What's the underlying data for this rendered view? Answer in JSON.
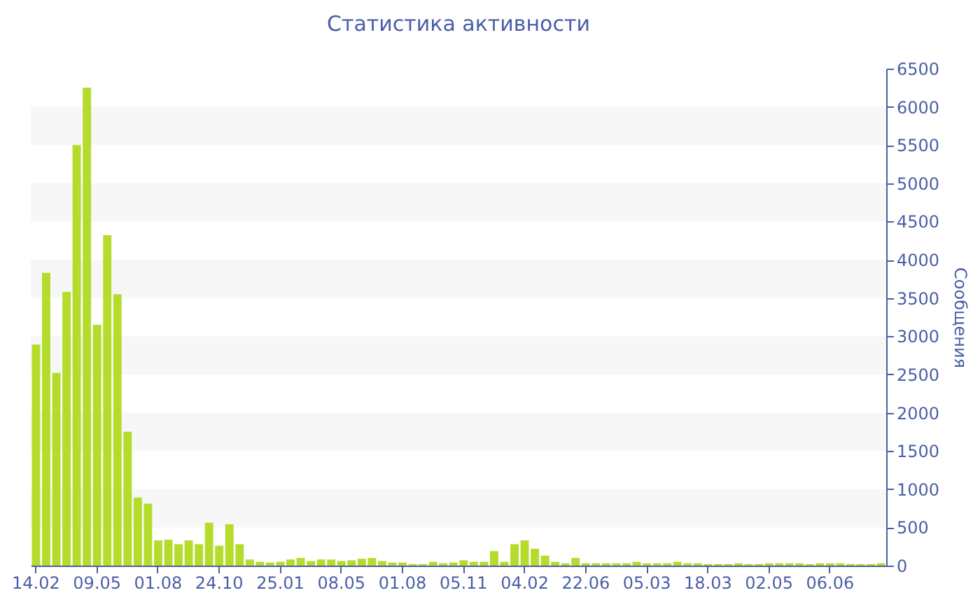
{
  "chart_data": {
    "type": "bar",
    "title": "Статистика активности",
    "ylabel": "Сообщения",
    "categories": [
      "14.02",
      null,
      null,
      null,
      null,
      null,
      "09.05",
      null,
      null,
      null,
      null,
      null,
      "01.08",
      null,
      null,
      null,
      null,
      null,
      "24.10",
      null,
      null,
      null,
      null,
      null,
      "25.01",
      null,
      null,
      null,
      null,
      null,
      "08.05",
      null,
      null,
      null,
      null,
      null,
      "01.08",
      null,
      null,
      null,
      null,
      null,
      "05.11",
      null,
      null,
      null,
      null,
      null,
      "04.02",
      null,
      null,
      null,
      null,
      null,
      "22.06",
      null,
      null,
      null,
      null,
      null,
      "05.03",
      null,
      null,
      null,
      null,
      null,
      "18.03",
      null,
      null,
      null,
      null,
      null,
      "02.05",
      null,
      null,
      null,
      null,
      null,
      "06.06",
      null,
      null,
      null,
      null,
      null
    ],
    "values": [
      2890,
      3830,
      2520,
      3580,
      5500,
      6250,
      3150,
      4320,
      3550,
      1750,
      890,
      810,
      330,
      340,
      280,
      330,
      280,
      560,
      260,
      540,
      280,
      80,
      50,
      40,
      50,
      80,
      100,
      60,
      80,
      80,
      60,
      70,
      90,
      100,
      60,
      40,
      40,
      20,
      20,
      50,
      30,
      40,
      70,
      50,
      50,
      190,
      50,
      280,
      330,
      220,
      130,
      50,
      30,
      100,
      30,
      30,
      30,
      30,
      30,
      50,
      30,
      30,
      30,
      50,
      30,
      30,
      20,
      20,
      20,
      30,
      20,
      20,
      30,
      30,
      30,
      30,
      20,
      30,
      30,
      30,
      20,
      20,
      20,
      30
    ],
    "color": "#b5dc2c",
    "ylim": [
      0,
      6500
    ],
    "yticks": [
      0,
      500,
      1000,
      1500,
      2000,
      2500,
      3000,
      3500,
      4000,
      4500,
      5000,
      5500,
      6000,
      6500
    ],
    "bands": [
      {
        "axis": "y",
        "from": 500,
        "to": 1000,
        "color": "#f7f7f7"
      },
      {
        "axis": "y",
        "from": 1500,
        "to": 2000,
        "color": "#f7f7f7"
      },
      {
        "axis": "y",
        "from": 2500,
        "to": 3000,
        "color": "#f7f7f7"
      },
      {
        "axis": "y",
        "from": 3500,
        "to": 4000,
        "color": "#f7f7f7"
      },
      {
        "axis": "y",
        "from": 4500,
        "to": 5000,
        "color": "#f7f7f7"
      },
      {
        "axis": "y",
        "from": 5500,
        "to": 6000,
        "color": "#f7f7f7"
      }
    ],
    "grid": false
  }
}
